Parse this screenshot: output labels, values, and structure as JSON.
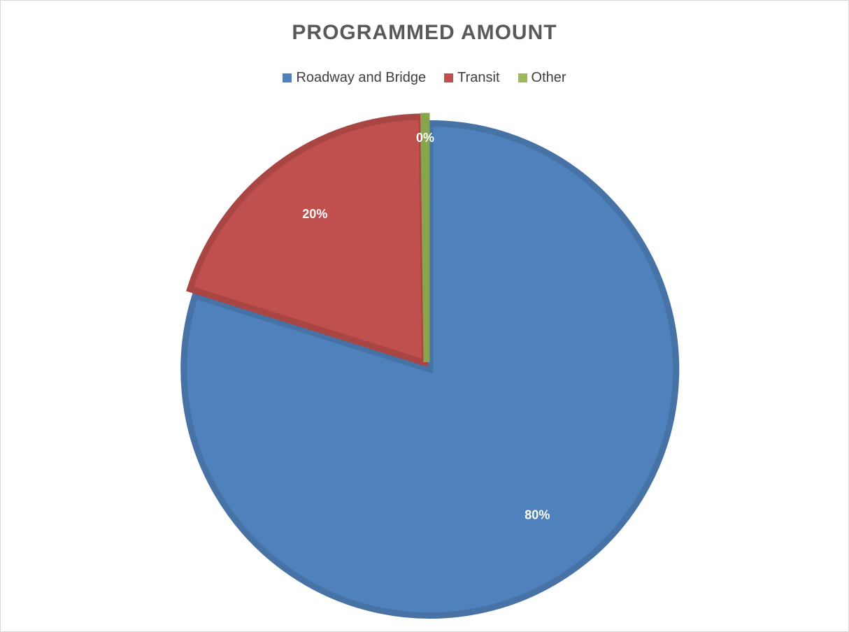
{
  "chart_data": {
    "type": "pie",
    "title": "PROGRAMMED AMOUNT",
    "categories": [
      "Roadway and Bridge",
      "Transit",
      "Other"
    ],
    "values": [
      80,
      20,
      0.2
    ],
    "data_labels": [
      "80%",
      "20%",
      "0%"
    ],
    "colors": [
      "#4f81bd",
      "#c0504d",
      "#9bbb59"
    ],
    "legend_position": "top"
  }
}
